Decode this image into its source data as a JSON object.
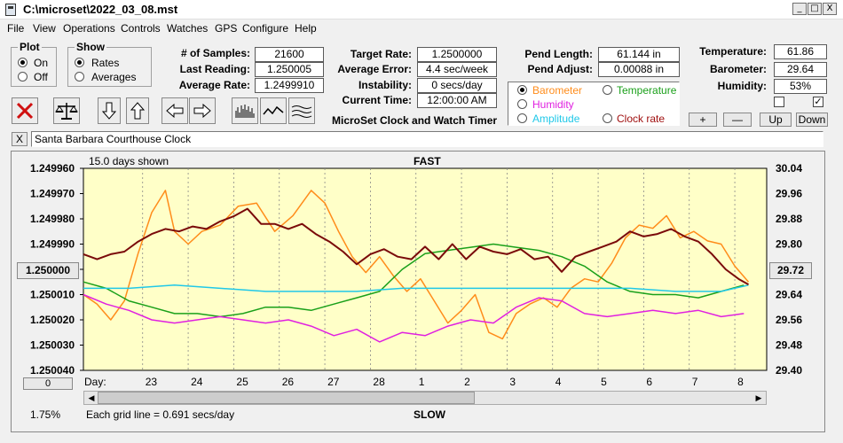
{
  "window": {
    "title": "C:\\microset\\2022_03_08.mst",
    "minimize": "_",
    "maximize": "□",
    "close": "X"
  },
  "menu": [
    "File",
    "View",
    "Operations",
    "Controls",
    "Watches",
    "GPS",
    "Configure",
    "Help"
  ],
  "plot_group": {
    "title": "Plot",
    "options": [
      "On",
      "Off"
    ],
    "selected": "On"
  },
  "show_group": {
    "title": "Show",
    "options": [
      "Rates",
      "Averages"
    ],
    "selected": "Rates"
  },
  "stats_left": [
    {
      "label": "# of Samples:",
      "value": "21600"
    },
    {
      "label": "Last Reading:",
      "value": "1.250005"
    },
    {
      "label": "Average Rate:",
      "value": "1.2499910"
    }
  ],
  "stats_mid": [
    {
      "label": "Target Rate:",
      "value": "1.2500000"
    },
    {
      "label": "Average Error:",
      "value": "4.4 sec/week"
    },
    {
      "label": "Instability:",
      "value": "0 secs/day"
    },
    {
      "label": "Current Time:",
      "value": "12:00:00 AM"
    }
  ],
  "pend": [
    {
      "label": "Pend Length:",
      "value": "61.144 in"
    },
    {
      "label": "Pend Adjust:",
      "value": "0.00088 in"
    }
  ],
  "environment": [
    {
      "label": "Temperature:",
      "value": "61.86"
    },
    {
      "label": "Barometer:",
      "value": "29.64"
    },
    {
      "label": "Humidity:",
      "value": "53%"
    }
  ],
  "app_caption": "MicroSet Clock and Watch Timer",
  "series_selector": [
    {
      "label": "Barometer",
      "color": "#ff8c1a",
      "selected": true
    },
    {
      "label": "Temperature",
      "color": "#1aa01a",
      "selected": false
    },
    {
      "label": "Humidity",
      "color": "#e020e0",
      "selected": false
    },
    {
      "label": "Amplitude",
      "color": "#20c8e8",
      "selected": false
    },
    {
      "label": "Clock rate",
      "color": "#a01010",
      "selected": false
    }
  ],
  "adjust_buttons": [
    "+",
    "—",
    "Up",
    "Down"
  ],
  "checkboxes": [
    {
      "checked": false
    },
    {
      "checked": true
    }
  ],
  "description": {
    "close": "X",
    "value": "Santa Barbara Courthouse Clock"
  },
  "chart_data": {
    "type": "line",
    "top_label": "FAST",
    "bottom_label": "SLOW",
    "days_shown": "15.0 days shown",
    "grid_note": "Each grid line = 0.691 secs/day",
    "percent": "1.75%",
    "left_button": "0",
    "current_right_value": "29.72",
    "day_prefix": "Day:",
    "days": [
      "23",
      "24",
      "25",
      "26",
      "27",
      "28",
      "1",
      "2",
      "3",
      "4",
      "5",
      "6",
      "7",
      "8"
    ],
    "y_left_ticks": [
      "1.249960",
      "1.249970",
      "1.249980",
      "1.249990",
      "1.250000",
      "1.250010",
      "1.250020",
      "1.250030",
      "1.250040"
    ],
    "y_left_highlight": "1.250000",
    "y_right_ticks": [
      "30.04",
      "29.96",
      "29.88",
      "29.80",
      "29.72",
      "29.64",
      "29.56",
      "29.48",
      "29.40"
    ],
    "y_left_range": [
      1.24996,
      1.25004
    ],
    "y_right_range": [
      29.4,
      30.04
    ],
    "x_range_days": [
      0,
      15
    ],
    "series": [
      {
        "name": "Barometer",
        "color": "#ff8c1a",
        "axis": "right",
        "x": [
          0,
          0.3,
          0.6,
          0.9,
          1.2,
          1.5,
          1.8,
          2.0,
          2.3,
          2.6,
          3.0,
          3.4,
          3.8,
          4.2,
          4.6,
          5.0,
          5.3,
          5.6,
          5.9,
          6.2,
          6.5,
          6.8,
          7.1,
          7.4,
          7.7,
          8.0,
          8.3,
          8.6,
          8.9,
          9.2,
          9.5,
          9.8,
          10.1,
          10.4,
          10.7,
          11.0,
          11.3,
          11.6,
          11.9,
          12.2,
          12.5,
          12.8,
          13.1,
          13.4,
          13.7,
          14.0,
          14.3,
          14.6
        ],
        "y": [
          29.64,
          29.61,
          29.56,
          29.62,
          29.77,
          29.9,
          29.97,
          29.84,
          29.8,
          29.84,
          29.86,
          29.92,
          29.93,
          29.84,
          29.89,
          29.97,
          29.93,
          29.84,
          29.76,
          29.71,
          29.76,
          29.7,
          29.65,
          29.69,
          29.62,
          29.55,
          29.59,
          29.64,
          29.52,
          29.5,
          29.58,
          29.61,
          29.63,
          29.6,
          29.66,
          29.69,
          29.68,
          29.74,
          29.82,
          29.86,
          29.85,
          29.89,
          29.82,
          29.84,
          29.81,
          29.8,
          29.73,
          29.68
        ]
      },
      {
        "name": "Temperature",
        "color": "#1aa01a",
        "axis": "right",
        "x": [
          0,
          0.5,
          1.0,
          1.5,
          2.0,
          2.5,
          3.0,
          3.5,
          4.0,
          4.5,
          5.0,
          5.5,
          6.0,
          6.5,
          7.0,
          7.5,
          8.0,
          8.5,
          9.0,
          9.5,
          10.0,
          10.5,
          11.0,
          11.5,
          12.0,
          12.5,
          13.0,
          13.5,
          14.0,
          14.5
        ],
        "y": [
          29.68,
          29.66,
          29.62,
          29.6,
          29.58,
          29.58,
          29.57,
          29.58,
          29.6,
          29.6,
          29.59,
          29.61,
          29.63,
          29.65,
          29.72,
          29.77,
          29.78,
          29.79,
          29.8,
          29.79,
          29.78,
          29.76,
          29.73,
          29.68,
          29.65,
          29.64,
          29.64,
          29.63,
          29.65,
          29.67
        ]
      },
      {
        "name": "Humidity",
        "color": "#e020e0",
        "axis": "right",
        "x": [
          0,
          0.5,
          1.0,
          1.5,
          2.0,
          2.5,
          3.0,
          3.5,
          4.0,
          4.5,
          5.0,
          5.5,
          6.0,
          6.5,
          7.0,
          7.5,
          8.0,
          8.5,
          9.0,
          9.5,
          10.0,
          10.5,
          11.0,
          11.5,
          12.0,
          12.5,
          13.0,
          13.5,
          14.0,
          14.5
        ],
        "y": [
          29.64,
          29.61,
          29.59,
          29.56,
          29.55,
          29.56,
          29.57,
          29.56,
          29.55,
          29.56,
          29.54,
          29.51,
          29.53,
          29.49,
          29.52,
          29.51,
          29.54,
          29.56,
          29.55,
          29.6,
          29.63,
          29.62,
          29.58,
          29.57,
          29.58,
          29.59,
          29.58,
          29.59,
          29.57,
          29.58
        ]
      },
      {
        "name": "Amplitude",
        "color": "#20c8e8",
        "axis": "right",
        "x": [
          0,
          1,
          2,
          3,
          4,
          5,
          6,
          7,
          8,
          9,
          10,
          11,
          12,
          13,
          14,
          14.6
        ],
        "y": [
          29.66,
          29.66,
          29.67,
          29.66,
          29.65,
          29.65,
          29.65,
          29.66,
          29.66,
          29.66,
          29.66,
          29.66,
          29.66,
          29.65,
          29.65,
          29.67
        ]
      },
      {
        "name": "Clock rate",
        "color": "#7a0a0a",
        "axis": "left",
        "x": [
          0,
          0.3,
          0.6,
          0.9,
          1.2,
          1.5,
          1.8,
          2.1,
          2.4,
          2.7,
          3.0,
          3.3,
          3.6,
          3.9,
          4.2,
          4.5,
          4.8,
          5.1,
          5.4,
          5.7,
          6.0,
          6.3,
          6.6,
          6.9,
          7.2,
          7.5,
          7.8,
          8.1,
          8.4,
          8.7,
          9.0,
          9.3,
          9.6,
          9.9,
          10.2,
          10.5,
          10.8,
          11.1,
          11.4,
          11.7,
          12.0,
          12.3,
          12.6,
          12.9,
          13.2,
          13.5,
          13.8,
          14.1,
          14.4,
          14.6
        ],
        "y": [
          1.249994,
          1.249996,
          1.249994,
          1.249993,
          1.249989,
          1.249986,
          1.249984,
          1.249985,
          1.249983,
          1.249984,
          1.249981,
          1.249979,
          1.249976,
          1.249982,
          1.249982,
          1.249984,
          1.249982,
          1.249986,
          1.249989,
          1.249993,
          1.249998,
          1.249994,
          1.249992,
          1.249995,
          1.249996,
          1.249991,
          1.249996,
          1.24999,
          1.249996,
          1.249991,
          1.249993,
          1.249994,
          1.249992,
          1.249996,
          1.249995,
          1.250001,
          1.249995,
          1.249993,
          1.249991,
          1.249989,
          1.249985,
          1.249987,
          1.249986,
          1.249984,
          1.249987,
          1.249989,
          1.249994,
          1.25,
          1.250004,
          1.250006
        ]
      }
    ]
  }
}
